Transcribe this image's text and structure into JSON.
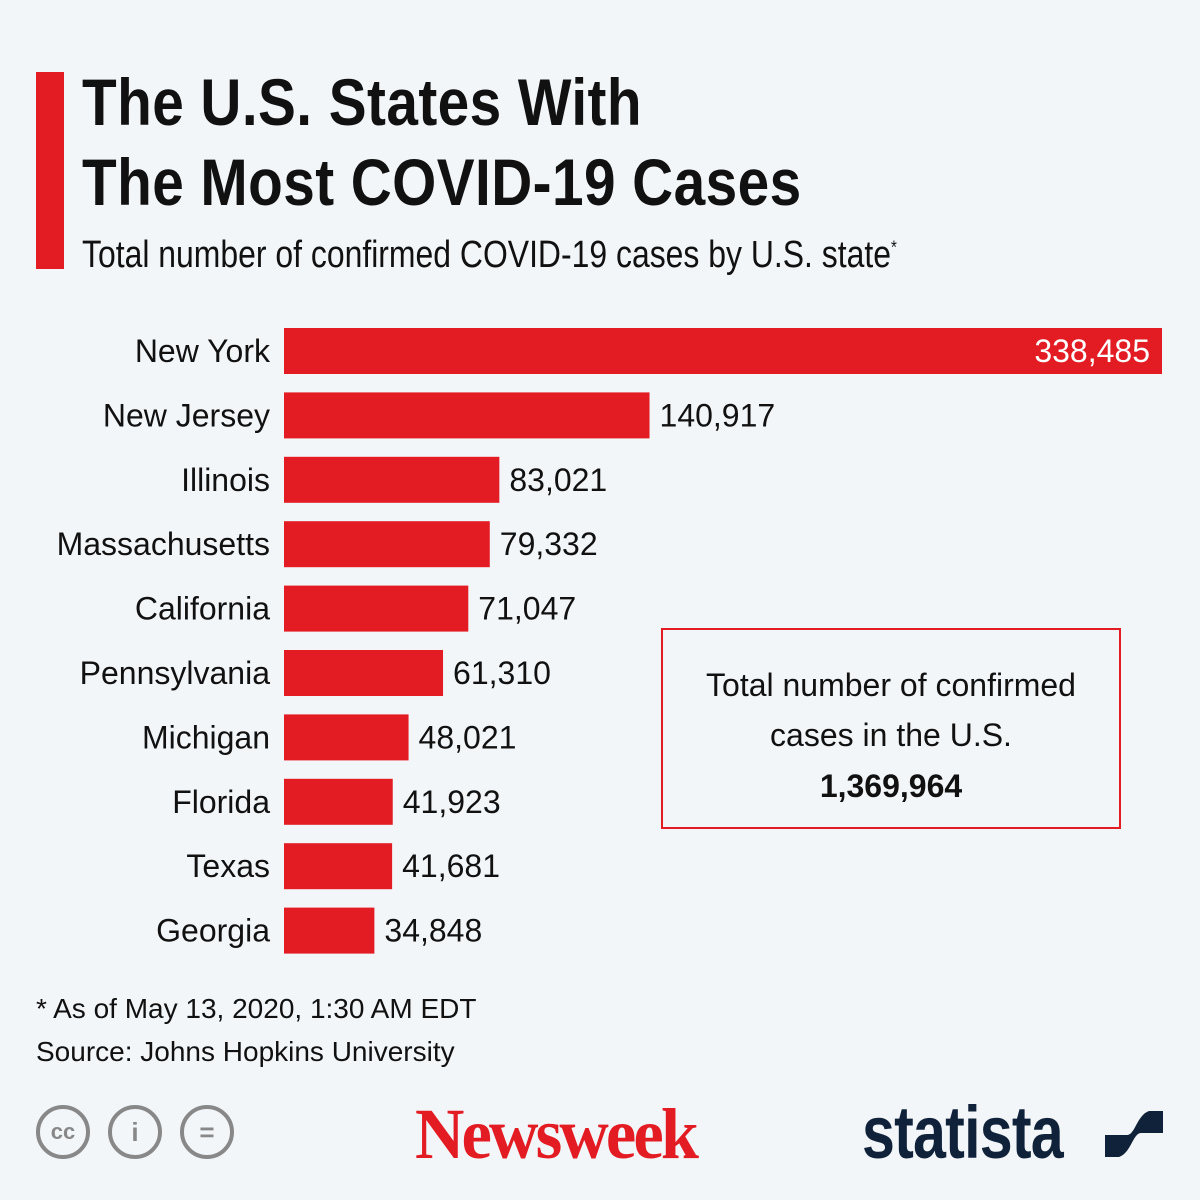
{
  "header": {
    "title_line1": "The U.S. States With",
    "title_line2": "The Most COVID-19 Cases",
    "subtitle": "Total number of confirmed COVID-19 cases by U.S. state",
    "subtitle_mark": "*"
  },
  "chart_data": {
    "type": "bar",
    "orientation": "horizontal",
    "categories": [
      "New York",
      "New Jersey",
      "Illinois",
      "Massachusetts",
      "California",
      "Pennsylvania",
      "Michigan",
      "Florida",
      "Texas",
      "Georgia"
    ],
    "values": [
      338485,
      140917,
      83021,
      79332,
      71047,
      61310,
      48021,
      41923,
      41681,
      34848
    ],
    "value_labels": [
      "338,485",
      "140,917",
      "83,021",
      "79,332",
      "71,047",
      "61,310",
      "48,021",
      "41,923",
      "41,681",
      "34,848"
    ],
    "xlim": [
      0,
      338485
    ],
    "grid": false,
    "bar_color": "#e31c24"
  },
  "callout": {
    "line1": "Total number of confirmed",
    "line2": "cases in the U.S.",
    "value": "1,369,964"
  },
  "footer": {
    "note": "* As of May 13, 2020, 1:30 AM EDT",
    "source": "Source: Johns Hopkins University",
    "cc_icons": [
      "cc-icon",
      "attribution-icon",
      "no-derivatives-icon"
    ],
    "logo1": "Newsweek",
    "logo2": "statista"
  },
  "colors": {
    "accent": "#e31c24",
    "statista": "#0f2239",
    "background": "#f3f6f9"
  }
}
